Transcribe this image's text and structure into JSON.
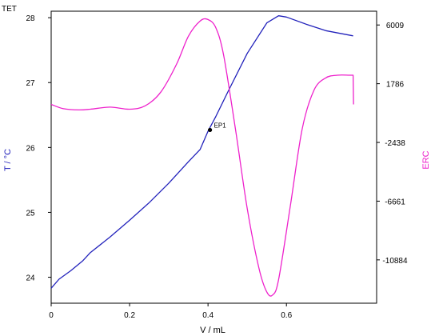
{
  "chart_data": {
    "type": "line",
    "title": "TET",
    "xlabel": "V / mL",
    "ylabel_left": "T / °C",
    "ylabel_right": "ERC",
    "xlim": [
      0,
      0.83
    ],
    "ylim_left": [
      23.6,
      28.1
    ],
    "ylim_right": [
      -14000,
      7000
    ],
    "x_ticks": [
      {
        "value": 0,
        "label": "0"
      },
      {
        "value": 0.2,
        "label": "0.2"
      },
      {
        "value": 0.4,
        "label": "0.4"
      },
      {
        "value": 0.6,
        "label": "0.6"
      }
    ],
    "y_left_ticks": [
      {
        "value": 24,
        "label": "24"
      },
      {
        "value": 25,
        "label": "25"
      },
      {
        "value": 26,
        "label": "26"
      },
      {
        "value": 27,
        "label": "27"
      },
      {
        "value": 28,
        "label": "28"
      }
    ],
    "y_right_ticks": [
      {
        "value": 6009,
        "label": "6009"
      },
      {
        "value": 1786,
        "label": "1786"
      },
      {
        "value": -2438,
        "label": "-2438"
      },
      {
        "value": -6661,
        "label": "-6661"
      },
      {
        "value": -10884,
        "label": "-10884"
      }
    ],
    "grid": false,
    "series": [
      {
        "axis": "left",
        "color": "#2222bb",
        "x": [
          0.0,
          0.02,
          0.05,
          0.08,
          0.1,
          0.15,
          0.2,
          0.25,
          0.3,
          0.35,
          0.38,
          0.4,
          0.42,
          0.45,
          0.5,
          0.55,
          0.58,
          0.6,
          0.65,
          0.7,
          0.77
        ],
        "y": [
          23.83,
          23.97,
          24.1,
          24.25,
          24.38,
          24.62,
          24.88,
          25.15,
          25.45,
          25.78,
          25.97,
          26.25,
          26.48,
          26.85,
          27.45,
          27.92,
          28.03,
          28.01,
          27.9,
          27.8,
          27.72
        ]
      },
      {
        "axis": "right",
        "color": "#ee22cc",
        "x": [
          0.0,
          0.03,
          0.07,
          0.1,
          0.15,
          0.2,
          0.24,
          0.28,
          0.32,
          0.35,
          0.38,
          0.4,
          0.42,
          0.44,
          0.47,
          0.5,
          0.53,
          0.55,
          0.565,
          0.58,
          0.61,
          0.64,
          0.67,
          0.7,
          0.73,
          0.76,
          0.77,
          0.771
        ],
        "y": [
          300,
          0,
          -100,
          -50,
          100,
          -50,
          200,
          1200,
          3200,
          5200,
          6300,
          6400,
          5800,
          3800,
          -1500,
          -7200,
          -11500,
          -13200,
          -13400,
          -12300,
          -7000,
          -1500,
          1300,
          2200,
          2400,
          2400,
          2400,
          300
        ]
      }
    ],
    "annotations": [
      {
        "label": "EP1",
        "x": 0.405,
        "y": 26.27
      }
    ]
  }
}
